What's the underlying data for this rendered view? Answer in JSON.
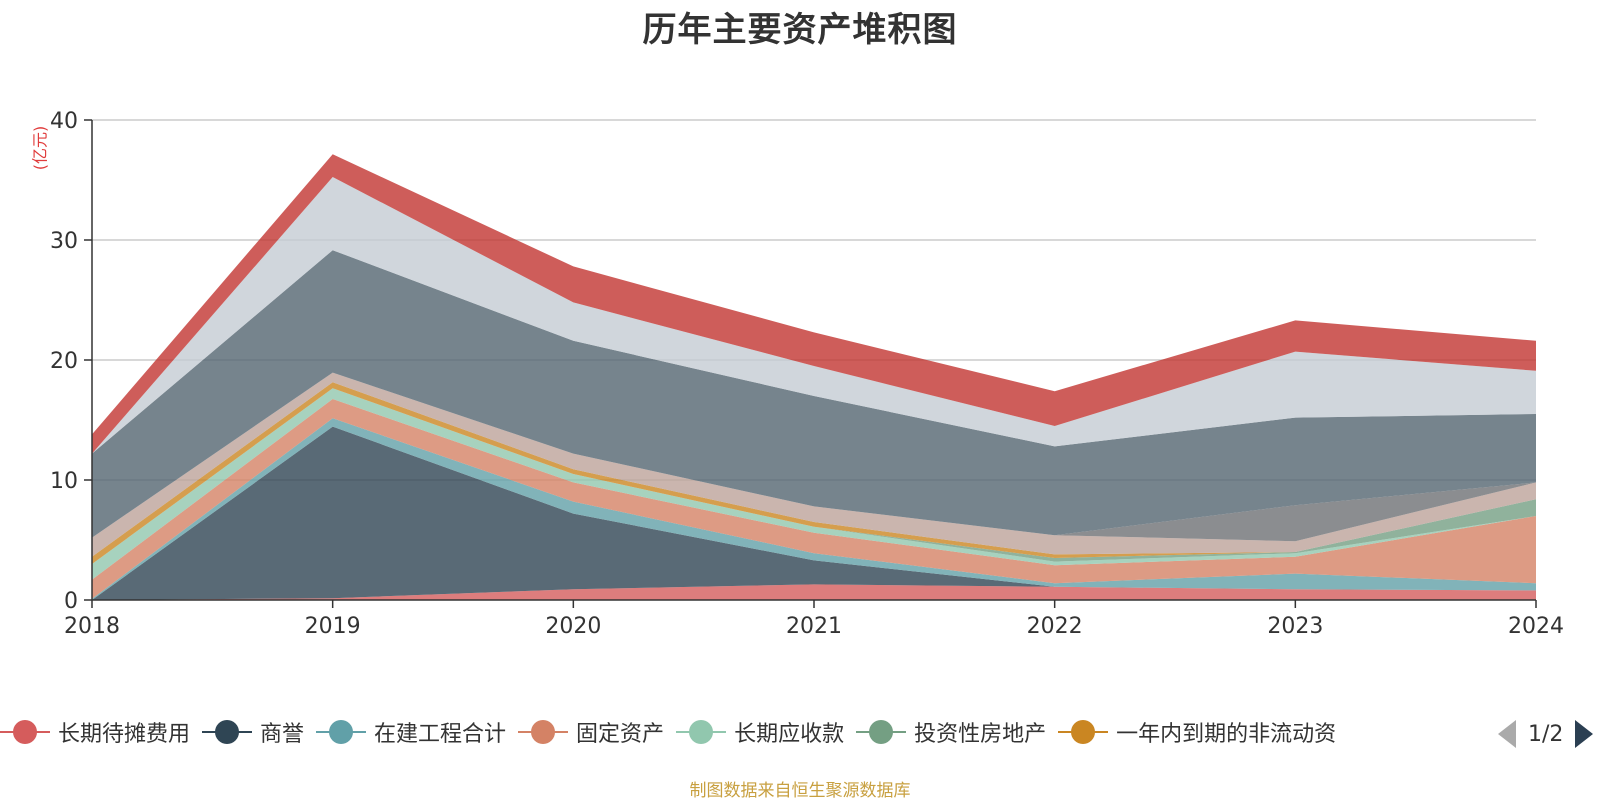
{
  "title": "历年主要资产堆积图",
  "unit_label": "(亿元)",
  "source_note": "制图数据来自恒生聚源数据库",
  "pager": {
    "text": "1/2"
  },
  "chart_data": {
    "type": "area",
    "stacked": true,
    "x": [
      "2018",
      "2019",
      "2020",
      "2021",
      "2022",
      "2023",
      "2024"
    ],
    "ylim": [
      0,
      40
    ],
    "yticks": [
      0,
      10,
      20,
      30,
      40
    ],
    "grid": true,
    "legend_position": "bottom",
    "series": [
      {
        "name": "长期待摊费用",
        "color": "#d55c5c",
        "values": [
          0.0,
          0.15,
          0.9,
          1.3,
          1.1,
          0.9,
          0.8
        ]
      },
      {
        "name": "商誉",
        "color": "#2f4554",
        "values": [
          0.0,
          14.3,
          6.3,
          2.0,
          0.0,
          0.0,
          0.0
        ]
      },
      {
        "name": "在建工程合计",
        "color": "#61a0a8",
        "values": [
          0.1,
          0.7,
          1.0,
          0.6,
          0.3,
          1.3,
          0.6
        ]
      },
      {
        "name": "固定资产",
        "color": "#d48265",
        "values": [
          1.6,
          1.6,
          1.6,
          1.7,
          1.5,
          1.4,
          5.6
        ]
      },
      {
        "name": "长期应收款",
        "color": "#91c7ae",
        "values": [
          1.3,
          0.9,
          0.7,
          0.5,
          0.3,
          0.3,
          0.0
        ]
      },
      {
        "name": "投资性房地产",
        "color": "#749f83",
        "values": [
          0.0,
          0.0,
          0.0,
          0.0,
          0.3,
          0.1,
          1.4
        ]
      },
      {
        "name": "一年内到期的非流动资",
        "color": "#ca8622",
        "values": [
          0.6,
          0.5,
          0.4,
          0.4,
          0.3,
          0.0,
          0.0
        ]
      },
      {
        "name": "",
        "color": "#bda29a",
        "values": [
          1.6,
          0.8,
          1.3,
          1.3,
          1.6,
          0.9,
          1.4
        ]
      },
      {
        "name": "",
        "color": "#6e7074",
        "values": [
          0.0,
          0.0,
          0.0,
          0.0,
          0.0,
          3.0,
          0.0
        ]
      },
      {
        "name": "",
        "color": "#546570",
        "values": [
          7.0,
          10.2,
          9.4,
          9.2,
          7.4,
          7.3,
          5.7
        ]
      },
      {
        "name": "",
        "color": "#c4ccd3",
        "values": [
          0.0,
          6.1,
          3.2,
          2.5,
          1.7,
          5.5,
          3.6
        ]
      },
      {
        "name": "",
        "color": "#c23531",
        "values": [
          1.6,
          1.9,
          3.0,
          2.8,
          2.9,
          2.6,
          2.5
        ]
      }
    ]
  }
}
